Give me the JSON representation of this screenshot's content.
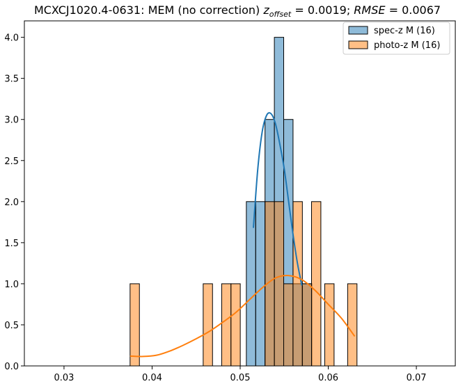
{
  "chart_data": {
    "type": "bar",
    "title": {
      "prefix": "MCXCJ1020.4-0631: MEM (no correction) ",
      "z_var": "z",
      "z_sub": "offset",
      "z_val": " = 0.0019; ",
      "rmse_var": "RMSE",
      "rmse_val": " = 0.0067"
    },
    "xlabel": "",
    "ylabel": "",
    "xlim": [
      0.0255,
      0.0745
    ],
    "ylim": [
      0,
      4.2
    ],
    "xticks": [
      0.03,
      0.04,
      0.05,
      0.06,
      0.07
    ],
    "xtick_labels": [
      "0.03",
      "0.04",
      "0.05",
      "0.06",
      "0.07"
    ],
    "yticks": [
      0.0,
      0.5,
      1.0,
      1.5,
      2.0,
      2.5,
      3.0,
      3.5,
      4.0
    ],
    "ytick_labels": [
      "0.0",
      "0.5",
      "1.0",
      "1.5",
      "2.0",
      "2.5",
      "3.0",
      "3.5",
      "4.0"
    ],
    "legend": {
      "placement": "top-right",
      "entries": [
        "spec-z M (16)",
        "photo-z M (16)"
      ]
    },
    "bin_width": 0.00106,
    "series": [
      {
        "name": "spec-z M (16)",
        "color": "#1f77b4",
        "fill": "rgba(31,119,180,0.5)",
        "bins": [
          {
            "x0": 0.0507,
            "count": 2
          },
          {
            "x0": 0.05176,
            "count": 2
          },
          {
            "x0": 0.05282,
            "count": 3
          },
          {
            "x0": 0.05388,
            "count": 4
          },
          {
            "x0": 0.05494,
            "count": 3
          },
          {
            "x0": 0.056,
            "count": 1
          },
          {
            "x0": 0.05706,
            "count": 1
          }
        ],
        "kde": {
          "x": [
            0.0515,
            0.052,
            0.0525,
            0.053,
            0.0535,
            0.054,
            0.0545,
            0.055,
            0.0555,
            0.056,
            0.0565,
            0.057
          ],
          "y": [
            1.68,
            2.4,
            2.85,
            3.05,
            3.07,
            2.95,
            2.7,
            2.4,
            2.0,
            1.6,
            1.25,
            0.98
          ]
        }
      },
      {
        "name": "photo-z M (16)",
        "color": "#ff7f0e",
        "fill": "rgba(255,127,14,0.5)",
        "bins": [
          {
            "x0": 0.0375,
            "count": 1
          },
          {
            "x0": 0.0458,
            "count": 1
          },
          {
            "x0": 0.0479,
            "count": 1
          },
          {
            "x0": 0.04895,
            "count": 1
          },
          {
            "x0": 0.05282,
            "count": 2
          },
          {
            "x0": 0.05388,
            "count": 2
          },
          {
            "x0": 0.05494,
            "count": 1
          },
          {
            "x0": 0.056,
            "count": 2
          },
          {
            "x0": 0.05706,
            "count": 1
          },
          {
            "x0": 0.0581,
            "count": 2
          },
          {
            "x0": 0.0596,
            "count": 1
          },
          {
            "x0": 0.0622,
            "count": 1
          }
        ],
        "kde": {
          "x": [
            0.0375,
            0.039,
            0.0405,
            0.042,
            0.0435,
            0.045,
            0.0465,
            0.048,
            0.0495,
            0.051,
            0.0525,
            0.054,
            0.0555,
            0.057,
            0.0585,
            0.06,
            0.0615,
            0.063
          ],
          "y": [
            0.12,
            0.115,
            0.13,
            0.18,
            0.25,
            0.33,
            0.42,
            0.53,
            0.65,
            0.8,
            0.95,
            1.07,
            1.1,
            1.05,
            0.92,
            0.75,
            0.58,
            0.36
          ]
        }
      }
    ]
  }
}
